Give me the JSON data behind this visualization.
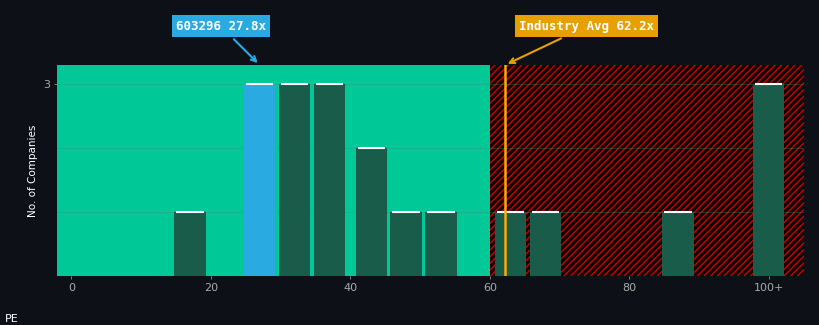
{
  "background_color": "#0d1117",
  "plot_bg_left": "#00c896",
  "plot_bg_right": "#110000",
  "hatch_color": "#cc0000",
  "bar_data": [
    {
      "x": 17,
      "height": 1,
      "color": "#1a5c4a"
    },
    {
      "x": 27,
      "height": 3,
      "color": "#29abe2"
    },
    {
      "x": 32,
      "height": 3,
      "color": "#1a5c4a"
    },
    {
      "x": 37,
      "height": 3,
      "color": "#1a5c4a"
    },
    {
      "x": 43,
      "height": 2,
      "color": "#1a5c4a"
    },
    {
      "x": 48,
      "height": 1,
      "color": "#1a5c4a"
    },
    {
      "x": 53,
      "height": 1,
      "color": "#1a5c4a"
    },
    {
      "x": 63,
      "height": 1,
      "color": "#1a5c4a"
    },
    {
      "x": 68,
      "height": 1,
      "color": "#1a5c4a"
    },
    {
      "x": 87,
      "height": 1,
      "color": "#1a5c4a"
    },
    {
      "x": 100,
      "height": 3,
      "color": "#1a5c4a"
    }
  ],
  "bar_width": 4.5,
  "ylim": [
    0,
    3.3
  ],
  "xlim": [
    -2,
    105
  ],
  "yticks": [
    3
  ],
  "xtick_labels": [
    "0",
    "20",
    "40",
    "60",
    "80",
    "100+"
  ],
  "xtick_positions": [
    0,
    20,
    40,
    60,
    80,
    100
  ],
  "xlabel": "PE",
  "ylabel": "No. of Companies",
  "industry_avg_x": 62.2,
  "industry_avg_label": "Industry Avg 62.2x",
  "company_x": 27.0,
  "company_label": "603296 27.8x",
  "split_x": 60,
  "annotation_fontsize": 9,
  "axis_label_color": "#ffffff",
  "tick_color": "#aaaaaa",
  "grid_color": "#339977",
  "ytick_label_color": "#ffffff"
}
